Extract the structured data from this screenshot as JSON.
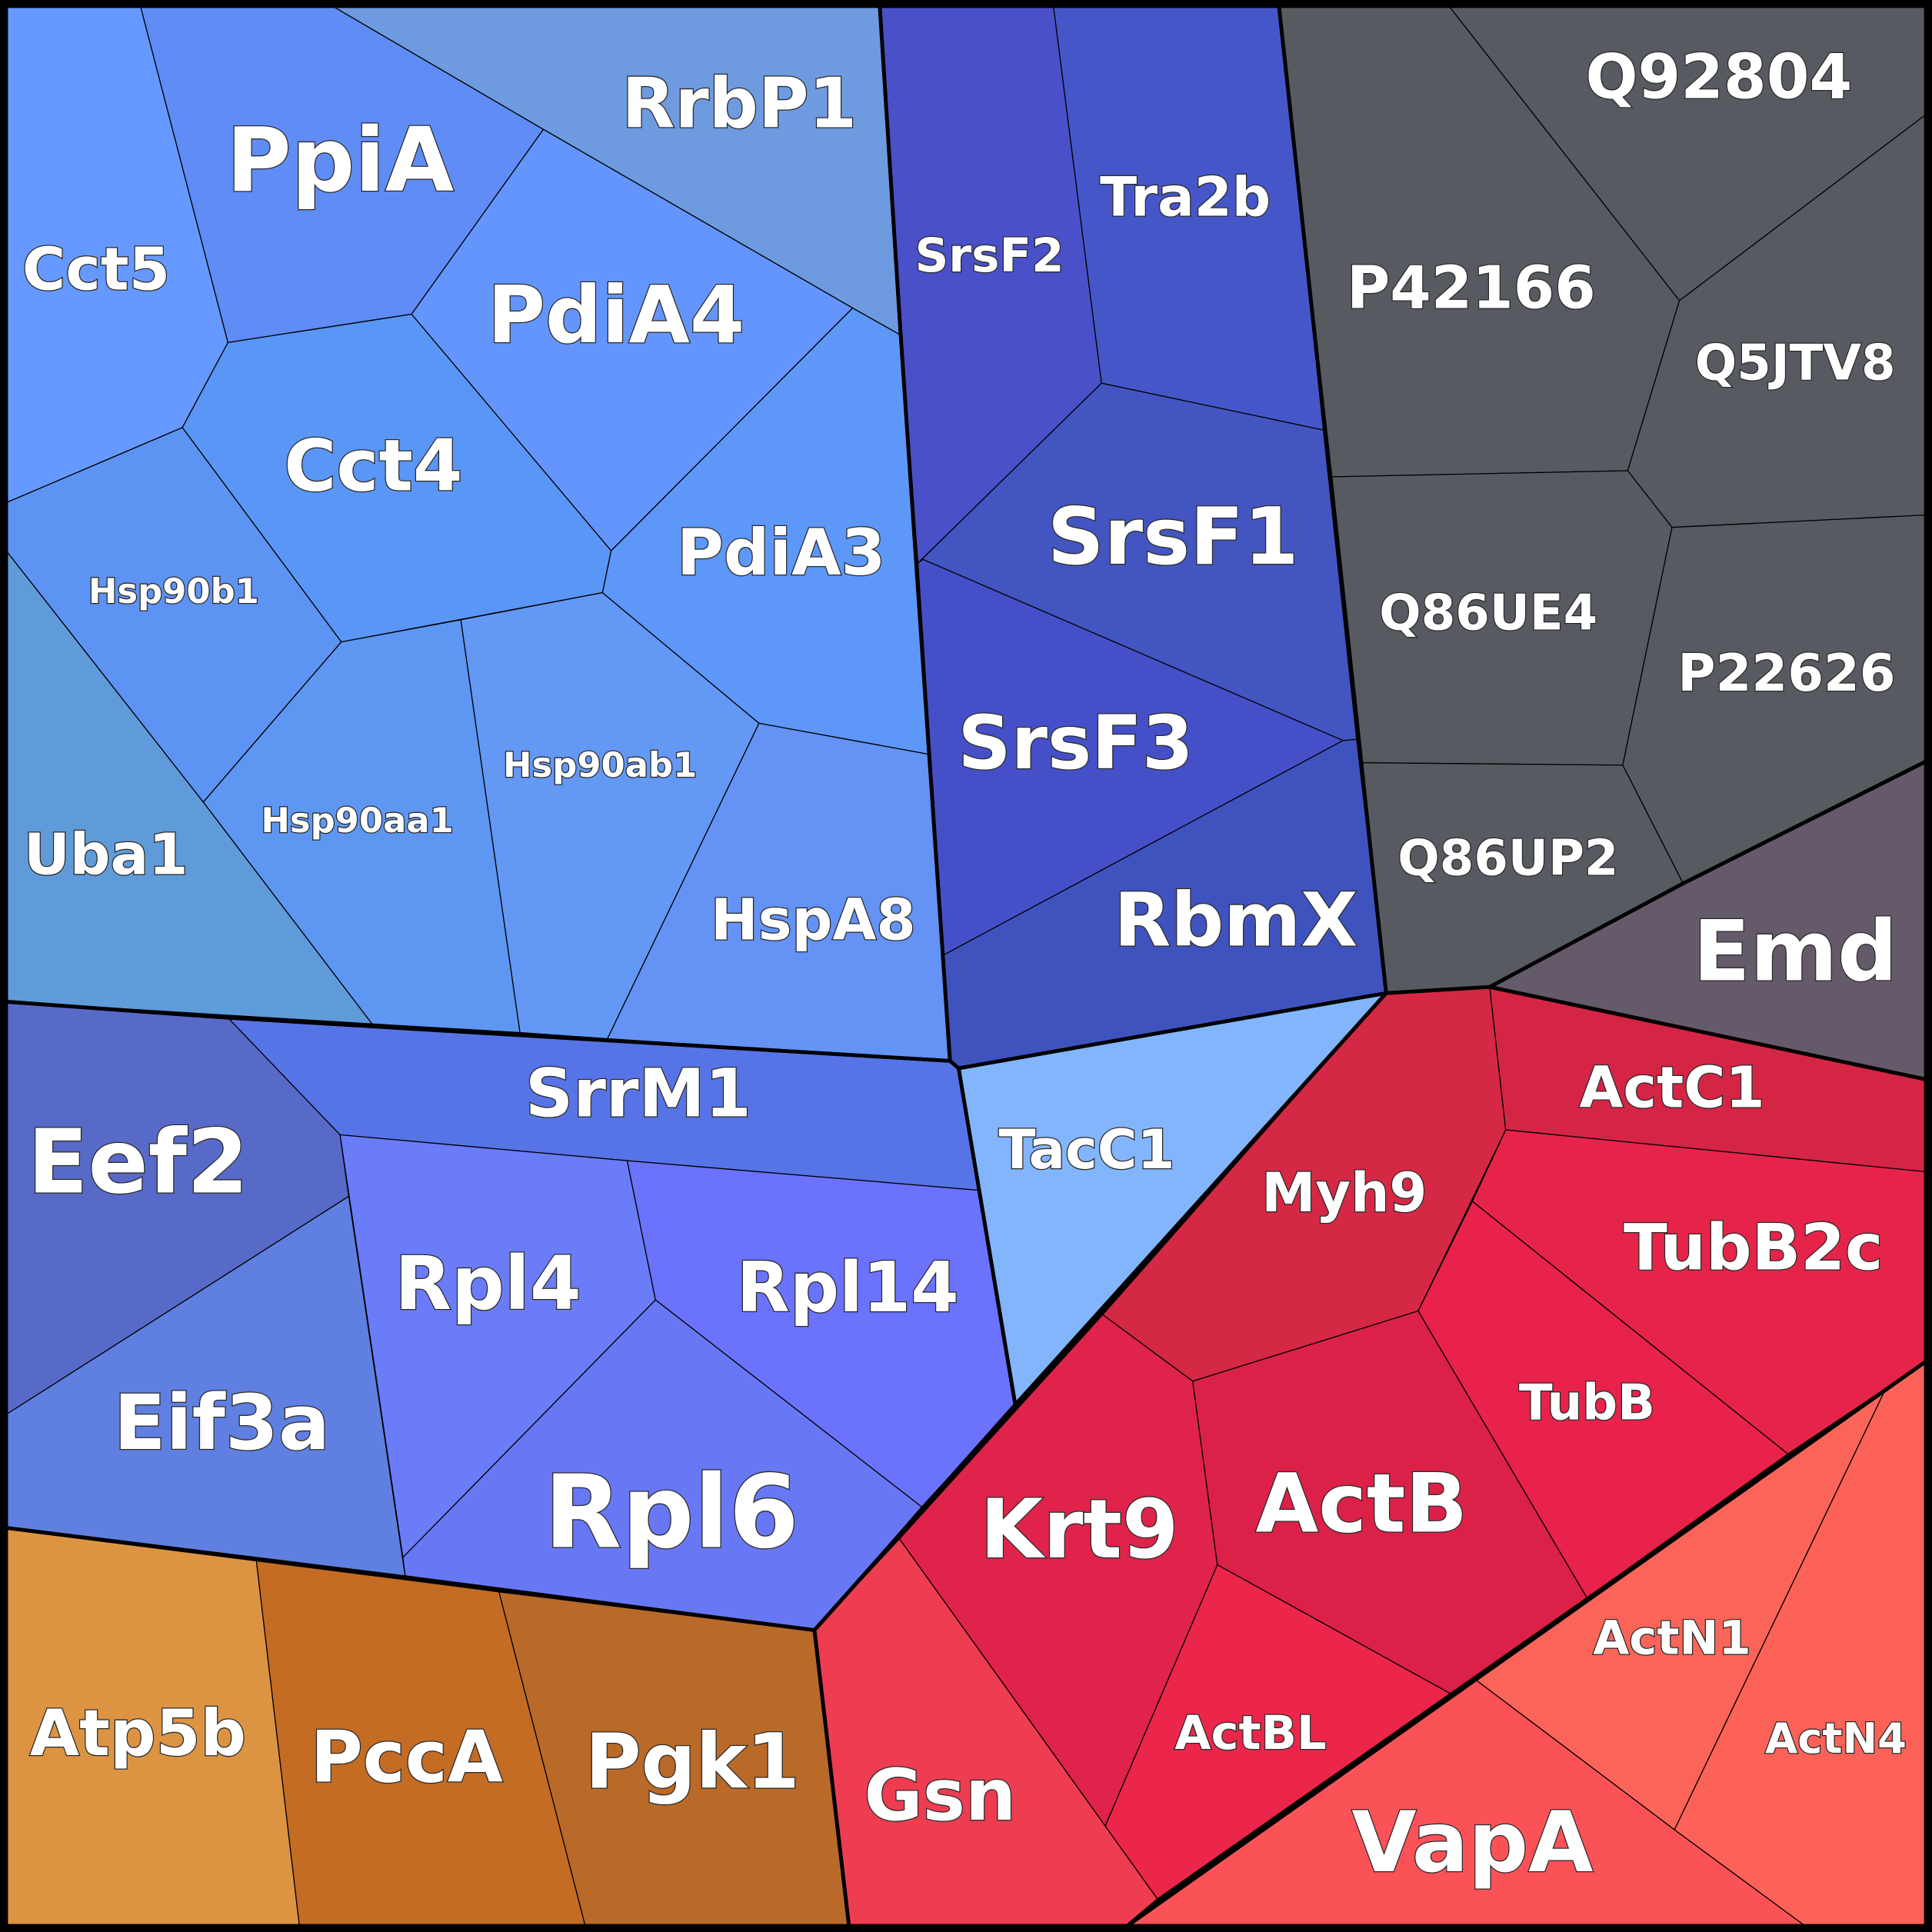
{
  "cells": [
    {
      "label": "Cct5"
    },
    {
      "label": "PpiA"
    },
    {
      "label": "RrbP1"
    },
    {
      "label": "PdiA4"
    },
    {
      "label": "Cct4"
    },
    {
      "label": "Hsp90b1"
    },
    {
      "label": "Uba1"
    },
    {
      "label": "Hsp90aa1"
    },
    {
      "label": "Hsp90ab1"
    },
    {
      "label": "PdiA3"
    },
    {
      "label": "HspA8"
    },
    {
      "label": "SrsF2"
    },
    {
      "label": "Tra2b"
    },
    {
      "label": "SrsF1"
    },
    {
      "label": "SrsF3"
    },
    {
      "label": "RbmX"
    },
    {
      "label": "Q92804"
    },
    {
      "label": "P42166"
    },
    {
      "label": "Q5JTV8"
    },
    {
      "label": "Q86UE4"
    },
    {
      "label": "P22626"
    },
    {
      "label": "Q86UP2"
    },
    {
      "label": "Emd"
    },
    {
      "label": "Eef2"
    },
    {
      "label": "SrrM1"
    },
    {
      "label": "Eif3a"
    },
    {
      "label": "Rpl4"
    },
    {
      "label": "Rpl14"
    },
    {
      "label": "Rpl6"
    },
    {
      "label": "TacC1"
    },
    {
      "label": "Atp5b"
    },
    {
      "label": "PccA"
    },
    {
      "label": "Pgk1"
    },
    {
      "label": "Myh9"
    },
    {
      "label": "ActC1"
    },
    {
      "label": "TubB2c"
    },
    {
      "label": "TubB"
    },
    {
      "label": "Krt9"
    },
    {
      "label": "ActB"
    },
    {
      "label": "Gsn"
    },
    {
      "label": "ActBL"
    },
    {
      "label": "VapA"
    },
    {
      "label": "ActN1"
    },
    {
      "label": "ActN4"
    }
  ]
}
